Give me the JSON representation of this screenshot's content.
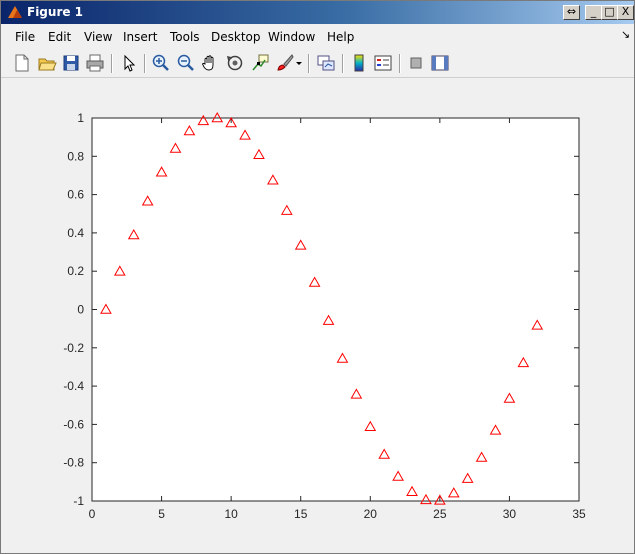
{
  "window": {
    "title": "Figure 1"
  },
  "title_buttons": [
    {
      "name": "dock-button",
      "glyph": "⇔"
    },
    {
      "name": "minimize-button",
      "glyph": "_"
    },
    {
      "name": "maximize-button",
      "glyph": "□"
    },
    {
      "name": "close-button",
      "glyph": "X"
    }
  ],
  "menu": {
    "items": [
      {
        "id": "file",
        "label": "File"
      },
      {
        "id": "edit",
        "label": "Edit"
      },
      {
        "id": "view",
        "label": "View"
      },
      {
        "id": "insert",
        "label": "Insert"
      },
      {
        "id": "tools",
        "label": "Tools"
      },
      {
        "id": "desktop",
        "label": "Desktop"
      },
      {
        "id": "window",
        "label": "Window"
      },
      {
        "id": "help",
        "label": "Help"
      }
    ],
    "overflow_arrow": "↘"
  },
  "toolbar": {
    "icons": [
      "new-figure-icon",
      "open-file-icon",
      "save-icon",
      "print-icon",
      "select-arrow-icon",
      "zoom-in-icon",
      "zoom-out-icon",
      "pan-hand-icon",
      "rotate-3d-icon",
      "data-cursor-icon",
      "brush-icon",
      "link-plot-icon",
      "colorbar-icon",
      "legend-icon",
      "hide-plot-tools-icon",
      "show-plot-tools-icon"
    ]
  },
  "colors": {
    "marker": "#ff0000",
    "axes_bg": "#ffffff",
    "axis_line": "#262626"
  },
  "chart_data": {
    "type": "scatter",
    "marker": "triangle",
    "x": [
      1,
      2,
      3,
      4,
      5,
      6,
      7,
      8,
      9,
      10,
      11,
      12,
      13,
      14,
      15,
      16,
      17,
      18,
      19,
      20,
      21,
      22,
      23,
      24,
      25,
      26,
      27,
      28,
      29,
      30,
      31,
      32
    ],
    "y": [
      0.0,
      0.199,
      0.389,
      0.565,
      0.717,
      0.841,
      0.932,
      0.985,
      1.0,
      0.974,
      0.909,
      0.808,
      0.675,
      0.516,
      0.335,
      0.141,
      -0.058,
      -0.256,
      -0.443,
      -0.612,
      -0.757,
      -0.872,
      -0.952,
      -0.994,
      -0.997,
      -0.959,
      -0.883,
      -0.773,
      -0.631,
      -0.465,
      -0.279,
      -0.083
    ],
    "xlim": [
      0,
      35
    ],
    "ylim": [
      -1,
      1
    ],
    "xticks": [
      0,
      5,
      10,
      15,
      20,
      25,
      30,
      35
    ],
    "yticks": [
      -1,
      -0.8,
      -0.6,
      -0.4,
      -0.2,
      0,
      0.2,
      0.4,
      0.6,
      0.8,
      1
    ],
    "xtick_labels": [
      "0",
      "5",
      "10",
      "15",
      "20",
      "25",
      "30",
      "35"
    ],
    "ytick_labels": [
      "-1",
      "-0.8",
      "-0.6",
      "-0.4",
      "-0.2",
      "0",
      "0.2",
      "0.4",
      "0.6",
      "0.8",
      "1"
    ],
    "title": "",
    "xlabel": "",
    "ylabel": "",
    "grid": false
  }
}
